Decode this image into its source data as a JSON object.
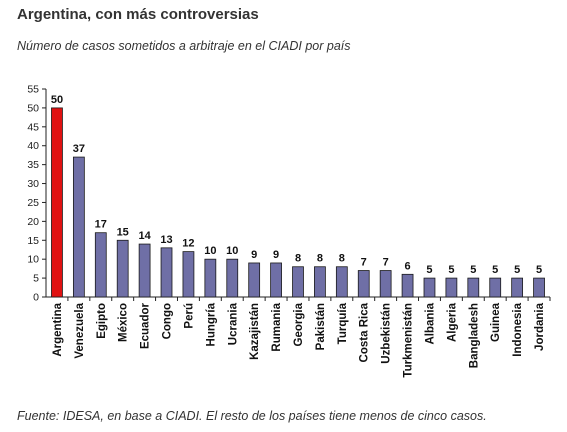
{
  "title": "Argentina, con más controversias",
  "subtitle": "Número de casos sometidos a arbitraje en el CIADI por país",
  "source": "Fuente: IDESA, en base a CIADI. El resto de los países tiene menos de cinco casos.",
  "colors": {
    "highlight": "#e01212",
    "bar": "#6f6fa6",
    "bar_stroke": "#1a1a1a",
    "axis": "#222222"
  },
  "chart_data": {
    "type": "bar",
    "title": "Número de casos sometidos a arbitraje en el CIADI por país",
    "xlabel": "",
    "ylabel": "",
    "ylim": [
      0,
      55
    ],
    "yticks": [
      0,
      5,
      10,
      15,
      20,
      25,
      30,
      35,
      40,
      45,
      50,
      55
    ],
    "grid": false,
    "highlight_category": "Argentina",
    "categories": [
      "Argentina",
      "Venezuela",
      "Egipto",
      "México",
      "Ecuador",
      "Congo",
      "Perú",
      "Hungría",
      "Ucrania",
      "Kazajistán",
      "Rumania",
      "Georgia",
      "Pakistán",
      "Turquía",
      "Costa Rica",
      "Uzbekistán",
      "Turkmenistán",
      "Albania",
      "Algeria",
      "Bangladesh",
      "Guinea",
      "Indonesia",
      "Jordania"
    ],
    "values": [
      50,
      37,
      17,
      15,
      14,
      13,
      12,
      10,
      10,
      9,
      9,
      8,
      8,
      8,
      7,
      7,
      6,
      5,
      5,
      5,
      5,
      5,
      5
    ]
  }
}
